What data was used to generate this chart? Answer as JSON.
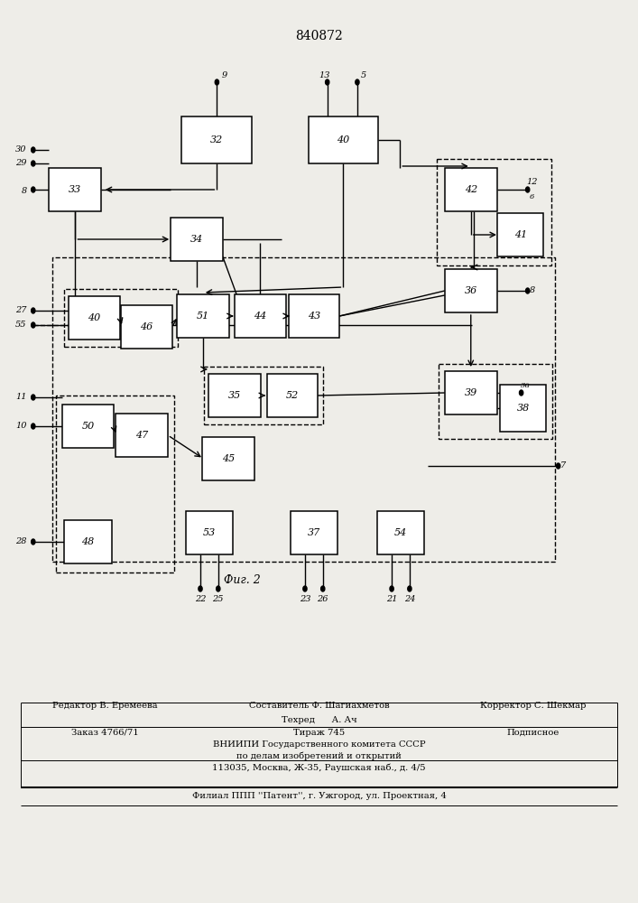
{
  "title": "840872",
  "fig_label": "Фиг. 2",
  "bg_color": "#eeede8",
  "boxes": {
    "32": [
      0.34,
      0.845,
      0.11,
      0.052
    ],
    "33": [
      0.118,
      0.79,
      0.082,
      0.048
    ],
    "34": [
      0.308,
      0.735,
      0.082,
      0.048
    ],
    "40": [
      0.538,
      0.845,
      0.108,
      0.052
    ],
    "42": [
      0.738,
      0.79,
      0.082,
      0.048
    ],
    "41": [
      0.816,
      0.74,
      0.072,
      0.048
    ],
    "36": [
      0.738,
      0.678,
      0.082,
      0.048
    ],
    "39": [
      0.738,
      0.565,
      0.082,
      0.048
    ],
    "38": [
      0.82,
      0.548,
      0.072,
      0.052
    ],
    "51": [
      0.318,
      0.65,
      0.082,
      0.048
    ],
    "44": [
      0.408,
      0.65,
      0.08,
      0.048
    ],
    "43": [
      0.492,
      0.65,
      0.08,
      0.048
    ],
    "35": [
      0.368,
      0.562,
      0.082,
      0.048
    ],
    "52": [
      0.458,
      0.562,
      0.08,
      0.048
    ],
    "40c": [
      0.148,
      0.648,
      0.08,
      0.048
    ],
    "46": [
      0.23,
      0.638,
      0.08,
      0.048
    ],
    "50": [
      0.138,
      0.528,
      0.08,
      0.048
    ],
    "47": [
      0.222,
      0.518,
      0.082,
      0.048
    ],
    "45": [
      0.358,
      0.492,
      0.082,
      0.048
    ],
    "53": [
      0.328,
      0.41,
      0.074,
      0.048
    ],
    "37": [
      0.492,
      0.41,
      0.074,
      0.048
    ],
    "54": [
      0.628,
      0.41,
      0.074,
      0.048
    ],
    "48": [
      0.138,
      0.4,
      0.074,
      0.048
    ]
  },
  "footer": {
    "line1_left": "Редактор В. Еремеева",
    "line1_mid_top": "Составитель Ф. Шагиахметов",
    "line1_mid_bot": "Техред      А. Ач",
    "line1_right": "Корректор С. Шекмар",
    "line2_left": "Заказ 4766/71",
    "line2_mid": "Тираж 745",
    "line2_right": "Подписное",
    "line3": "ВНИИПИ Государственного комитета СССР",
    "line4": "по делам изобретений и открытий",
    "line5": "113035, Москва, Ж-35, Раушская наб., д. 4/5",
    "line_last": "Филиал ППП ''Патент'', г. Ужгород, ул. Проектная, 4"
  }
}
